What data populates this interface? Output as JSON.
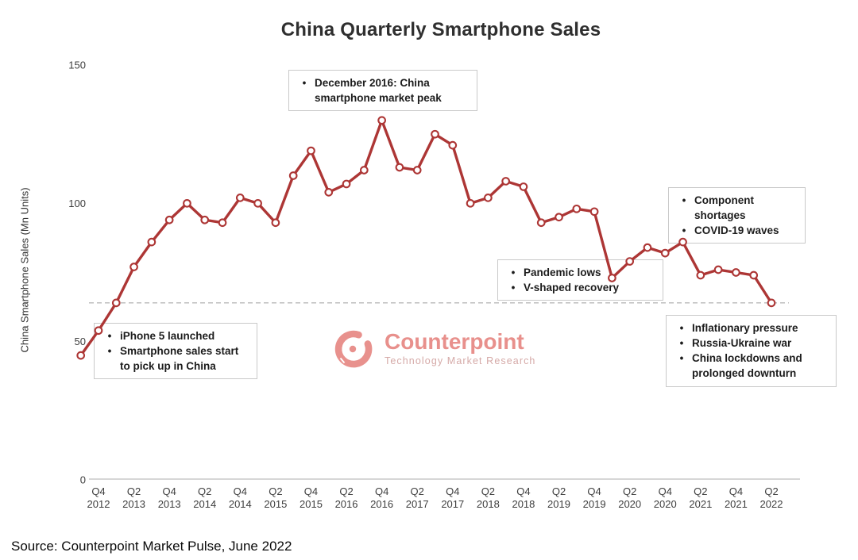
{
  "title": "China Quarterly Smartphone Sales",
  "source": "Source: Counterpoint Market Pulse, June 2022",
  "watermark": {
    "name": "Counterpoint",
    "tagline": "Technology Market Research"
  },
  "colors": {
    "line": "#ad3635",
    "marker_fill": "#ffffff",
    "axis_line": "#c8c8c8",
    "reference_dashed": "#b9b9b9",
    "tick_text": "#3d3d3d",
    "annotation_border": "#c9c9c9",
    "brand_pink": "#e8908c",
    "brand_pink_light": "#d5a9a7"
  },
  "chart_data": {
    "type": "line",
    "title": "China Quarterly Smartphone Sales",
    "xlabel": "",
    "ylabel": "China Smartphone Sales (Mn Units)",
    "ylim": [
      0,
      150
    ],
    "yticks": [
      0,
      50,
      100,
      150
    ],
    "grid": false,
    "legend": "none",
    "categories": [
      "Q3 2012",
      "Q4 2012",
      "Q1 2013",
      "Q2 2013",
      "Q3 2013",
      "Q4 2013",
      "Q1 2014",
      "Q2 2014",
      "Q3 2014",
      "Q4 2014",
      "Q1 2015",
      "Q2 2015",
      "Q3 2015",
      "Q4 2015",
      "Q1 2016",
      "Q2 2016",
      "Q3 2016",
      "Q4 2016",
      "Q1 2017",
      "Q2 2017",
      "Q3 2017",
      "Q4 2017",
      "Q1 2018",
      "Q2 2018",
      "Q3 2018",
      "Q4 2018",
      "Q1 2019",
      "Q2 2019",
      "Q3 2019",
      "Q4 2019",
      "Q1 2020",
      "Q2 2020",
      "Q3 2020",
      "Q4 2020",
      "Q1 2021",
      "Q2 2021",
      "Q3 2021",
      "Q4 2021",
      "Q1 2022",
      "Q2 2022"
    ],
    "x_tick_labels": [
      "Q4 2012",
      "Q2 2013",
      "Q4 2013",
      "Q2 2014",
      "Q4 2014",
      "Q2 2015",
      "Q4 2015",
      "Q2 2016",
      "Q4 2016",
      "Q2 2017",
      "Q4 2017",
      "Q2 2018",
      "Q4 2018",
      "Q2 2019",
      "Q4 2019",
      "Q2 2020",
      "Q4 2020",
      "Q2 2021",
      "Q4 2021",
      "Q2 2022"
    ],
    "series": [
      {
        "name": "China Smartphone Sales (Mn Units)",
        "color": "#ad3635",
        "values": [
          45,
          54,
          64,
          77,
          86,
          94,
          100,
          94,
          93,
          102,
          100,
          93,
          110,
          119,
          104,
          107,
          112,
          130,
          113,
          112,
          125,
          121,
          100,
          102,
          108,
          106,
          93,
          95,
          98,
          97,
          73,
          79,
          84,
          82,
          86,
          74,
          76,
          75,
          74,
          64
        ],
        "marker": "circle-open"
      }
    ],
    "reference_line": {
      "value": 64,
      "style": "dashed",
      "color": "#b9b9b9"
    },
    "annotations": {
      "peak": {
        "lines": [
          "December 2016: China smartphone market peak"
        ]
      },
      "iphone_launch": {
        "lines": [
          "iPhone 5 launched",
          "Smartphone sales start to pick up in China"
        ]
      },
      "pandemic": {
        "lines": [
          "Pandemic lows",
          "V-shaped recovery"
        ]
      },
      "shortages": {
        "lines": [
          "Component shortages",
          "COVID-19 waves"
        ]
      },
      "downturn": {
        "lines": [
          "Inflationary pressure",
          "Russia-Ukraine war",
          "China lockdowns and prolonged downturn"
        ]
      }
    },
    "bullet_glyph": "•"
  }
}
